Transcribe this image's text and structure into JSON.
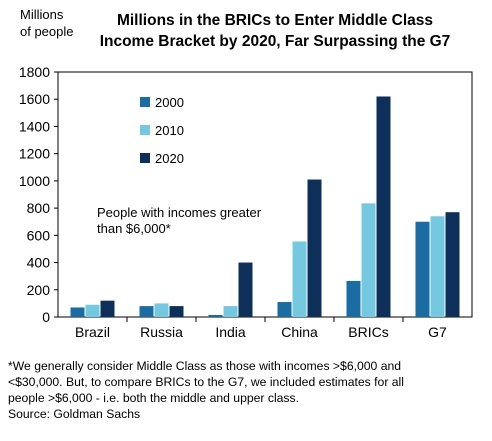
{
  "chart_data": {
    "type": "bar",
    "title_lines": [
      "Millions in the BRICs to Enter Middle Class",
      "Income Bracket  by 2020, Far Surpassing the G7"
    ],
    "ylabel_lines": [
      "Millions",
      "of people"
    ],
    "xlabel": "",
    "categories": [
      "Brazil",
      "Russia",
      "India",
      "China",
      "BRICs",
      "G7"
    ],
    "series": [
      {
        "name": "2000",
        "color": "#1a6ca3",
        "values": [
          70,
          80,
          15,
          110,
          265,
          700
        ]
      },
      {
        "name": "2010",
        "color": "#74c8e0",
        "values": [
          90,
          100,
          80,
          555,
          835,
          740
        ]
      },
      {
        "name": "2020",
        "color": "#0d2f5a",
        "values": [
          120,
          80,
          400,
          1010,
          1620,
          770
        ]
      }
    ],
    "ylim": [
      0,
      1800
    ],
    "yticks": [
      0,
      200,
      400,
      600,
      800,
      1000,
      1200,
      1400,
      1600,
      1800
    ],
    "grid": false,
    "legend_position": "upper-left-inside",
    "annotation_lines": [
      "People with incomes greater",
      "than $6,000*"
    ]
  },
  "footnote": {
    "lines": [
      "*We generally consider Middle Class as those with incomes >$6,000 and",
      "<$30,000. But, to compare BRICs to the G7, we included estimates for all",
      "people >$6,000 - i.e. both the middle and upper class."
    ],
    "source": "Source: Goldman Sachs"
  }
}
